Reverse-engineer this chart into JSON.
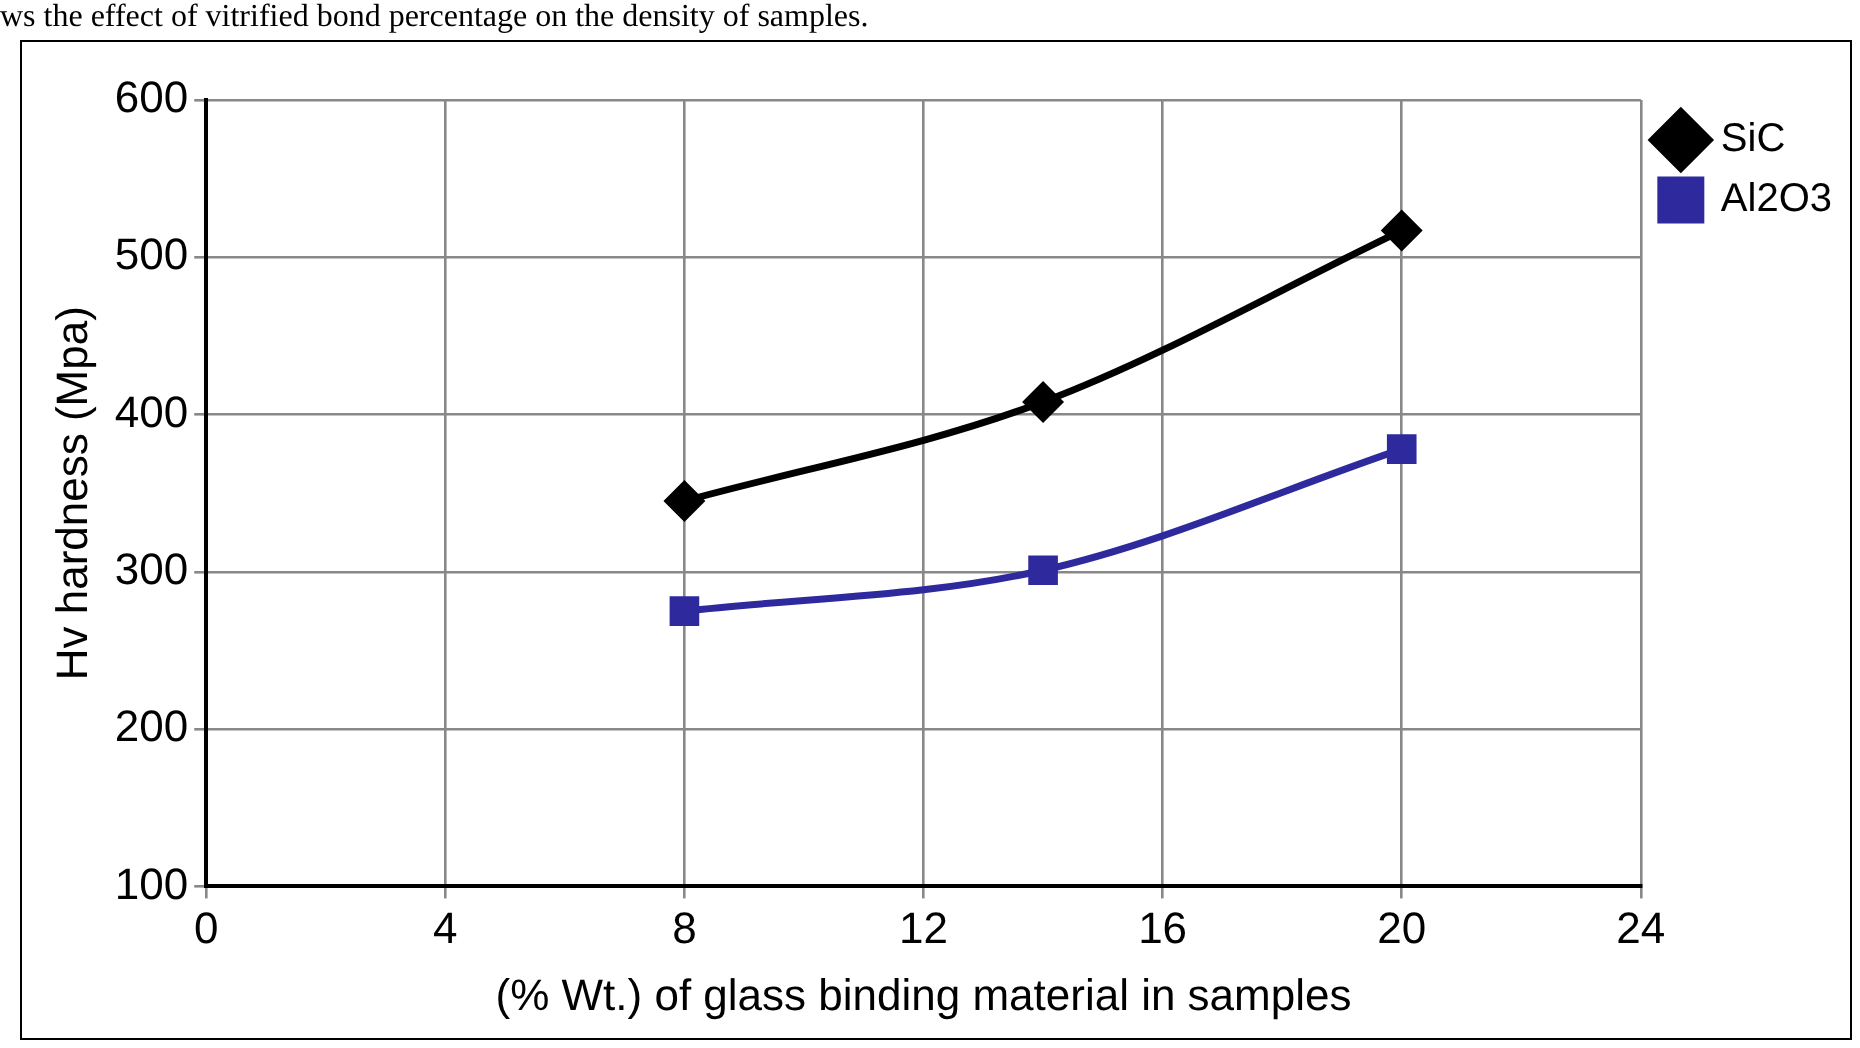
{
  "chart_data": {
    "type": "line",
    "xlabel": "(% Wt.) of glass binding material in samples",
    "ylabel": "Hv hardness (Mpa)",
    "annotations": [
      "ws the effect of vitrified bond percentage on the density of samples."
    ],
    "x": [
      8,
      14,
      20
    ],
    "series": [
      {
        "name": "SiC",
        "color": "#000000",
        "values": [
          345,
          408,
          517
        ],
        "marker": "diamond"
      },
      {
        "name": "Al2O3",
        "color": "#2e2a9e",
        "values": [
          275,
          301,
          378
        ],
        "marker": "square"
      }
    ],
    "xlim": [
      0,
      24
    ],
    "xticks": [
      0,
      4,
      8,
      12,
      16,
      20,
      24
    ],
    "ylim": [
      100,
      600
    ],
    "yticks": [
      100,
      200,
      300,
      400,
      500,
      600
    ],
    "grid": true,
    "legend": "top right",
    "line_style": "solid"
  }
}
